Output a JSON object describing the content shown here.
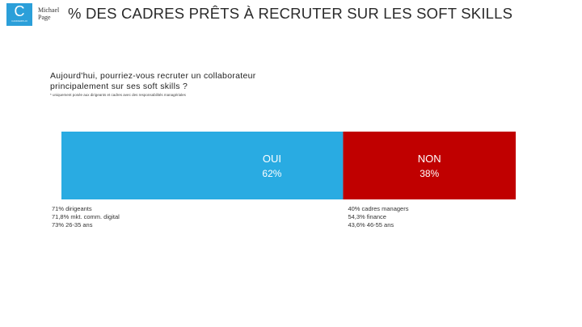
{
  "header": {
    "logo_letter": "C",
    "logo_sub": "CADREMPLOI",
    "brand_line1": "Michael",
    "brand_line2": "Page",
    "title": "% DES CADRES PRÊTS À RECRUTER SUR LES SOFT SKILLS"
  },
  "question": "Aujourd'hui, pourriez-vous recruter un collaborateur principalement sur ses soft skills ?",
  "footnote": "* uniquement posée aux dirigeants et cadres avec des responsabilités managériales",
  "colors": {
    "oui": "#29abe2",
    "non": "#c00000",
    "logo": "#2b9fd9"
  },
  "chart_data": {
    "type": "bar",
    "orientation": "stacked-horizontal",
    "categories": [
      "OUI",
      "NON"
    ],
    "values": [
      62,
      38
    ],
    "value_labels": [
      "62%",
      "38%"
    ],
    "annotations": {
      "oui": [
        "71% dirigeants",
        "71,8% mkt. comm. digital",
        "73% 26-35 ans"
      ],
      "non": [
        "40% cadres managers",
        "54,3% finance",
        "43,6% 46-55 ans"
      ]
    }
  }
}
